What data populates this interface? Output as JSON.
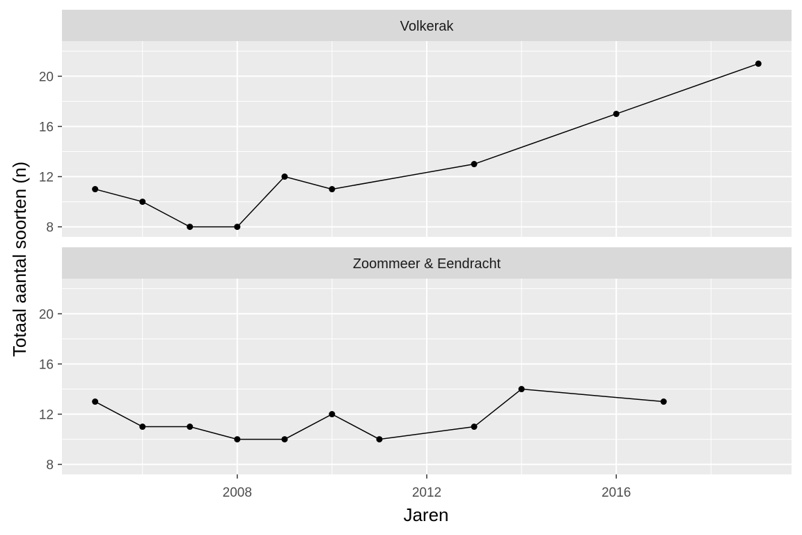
{
  "chart_data": {
    "type": "line",
    "xlabel": "Jaren",
    "ylabel": "Totaal aantal soorten (n)",
    "xlim": [
      2004.3,
      2019.7
    ],
    "ylim": [
      7.2,
      22.8
    ],
    "x_ticks": [
      2008,
      2012,
      2016
    ],
    "y_ticks": [
      8,
      12,
      16,
      20
    ],
    "grid": true,
    "markers": true,
    "colors": {
      "panel_background": "#ebebeb",
      "strip_background": "#d9d9d9",
      "grid_major": "#ffffff",
      "line": "#000000"
    },
    "panels": [
      {
        "strip_label": "Volkerak",
        "x": [
          2005,
          2006,
          2007,
          2008,
          2009,
          2010,
          2013,
          2016,
          2019
        ],
        "y": [
          11,
          10,
          8,
          8,
          12,
          11,
          13,
          17,
          21
        ]
      },
      {
        "strip_label": "Zoommeer & Eendracht",
        "x": [
          2005,
          2006,
          2007,
          2008,
          2009,
          2010,
          2011,
          2013,
          2014,
          2017
        ],
        "y": [
          13,
          11,
          11,
          10,
          10,
          12,
          10,
          11,
          14,
          13
        ]
      }
    ]
  }
}
